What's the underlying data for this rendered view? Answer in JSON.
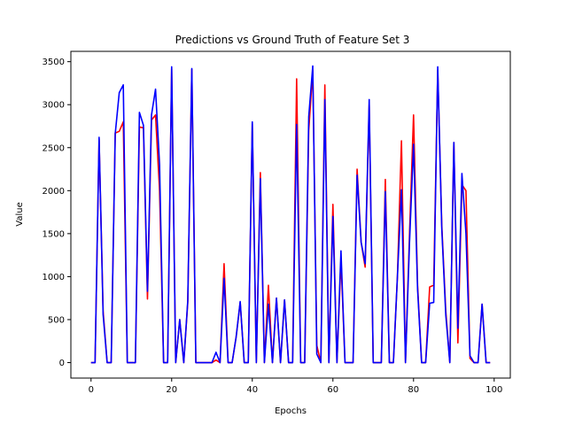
{
  "chart_data": {
    "type": "line",
    "title": "Predictions vs Ground Truth of Feature Set 3",
    "xlabel": "Epochs",
    "ylabel": "Value",
    "xlim": [
      -5,
      104
    ],
    "ylim": [
      -180,
      3620
    ],
    "xticks": [
      0,
      20,
      40,
      60,
      80,
      100
    ],
    "yticks": [
      0,
      500,
      1000,
      1500,
      2000,
      2500,
      3000,
      3500
    ],
    "grid": false,
    "legend": "none",
    "x": [
      0,
      1,
      2,
      3,
      4,
      5,
      6,
      7,
      8,
      9,
      10,
      11,
      12,
      13,
      14,
      15,
      16,
      17,
      18,
      19,
      20,
      21,
      22,
      23,
      24,
      25,
      26,
      27,
      28,
      29,
      30,
      31,
      32,
      33,
      34,
      35,
      36,
      37,
      38,
      39,
      40,
      41,
      42,
      43,
      44,
      45,
      46,
      47,
      48,
      49,
      50,
      51,
      52,
      53,
      54,
      55,
      56,
      57,
      58,
      59,
      60,
      61,
      62,
      63,
      64,
      65,
      66,
      67,
      68,
      69,
      70,
      71,
      72,
      73,
      74,
      75,
      76,
      77,
      78,
      79,
      80,
      81,
      82,
      83,
      84,
      85,
      86,
      87,
      88,
      89,
      90,
      91,
      92,
      93,
      94,
      95,
      96,
      97,
      98,
      99
    ],
    "series": [
      {
        "color": "#ff0000",
        "values": [
          0,
          0,
          2600,
          600,
          0,
          0,
          2670,
          2690,
          2800,
          0,
          0,
          0,
          2740,
          2730,
          740,
          2820,
          2880,
          2000,
          0,
          0,
          3420,
          0,
          500,
          0,
          700,
          3410,
          0,
          0,
          0,
          0,
          0,
          30,
          0,
          1150,
          0,
          0,
          300,
          700,
          0,
          0,
          2780,
          0,
          2210,
          0,
          900,
          0,
          750,
          0,
          730,
          0,
          0,
          3300,
          0,
          0,
          2700,
          3400,
          200,
          0,
          3230,
          0,
          1840,
          0,
          1200,
          0,
          0,
          0,
          2250,
          1400,
          1110,
          3000,
          0,
          0,
          0,
          2130,
          0,
          0,
          1000,
          2580,
          0,
          1500,
          2880,
          900,
          0,
          0,
          880,
          900,
          3400,
          1600,
          600,
          0,
          2560,
          230,
          2070,
          2000,
          50,
          0,
          0,
          680,
          0,
          0
        ]
      },
      {
        "color": "#0000ff",
        "values": [
          0,
          0,
          2620,
          560,
          0,
          0,
          2660,
          3140,
          3230,
          0,
          0,
          0,
          2910,
          2760,
          830,
          2880,
          3180,
          2300,
          0,
          0,
          3440,
          0,
          500,
          0,
          720,
          3420,
          0,
          0,
          0,
          0,
          0,
          120,
          0,
          980,
          0,
          0,
          300,
          710,
          0,
          0,
          2800,
          0,
          2140,
          0,
          680,
          0,
          750,
          0,
          730,
          0,
          0,
          2770,
          0,
          0,
          2860,
          3450,
          100,
          0,
          3060,
          0,
          1700,
          0,
          1300,
          0,
          0,
          0,
          2180,
          1400,
          1150,
          3060,
          0,
          0,
          0,
          1990,
          0,
          0,
          1000,
          2010,
          0,
          1400,
          2540,
          850,
          0,
          0,
          690,
          700,
          3440,
          1560,
          550,
          0,
          2560,
          400,
          2200,
          1500,
          80,
          0,
          0,
          680,
          0,
          0
        ]
      }
    ]
  }
}
